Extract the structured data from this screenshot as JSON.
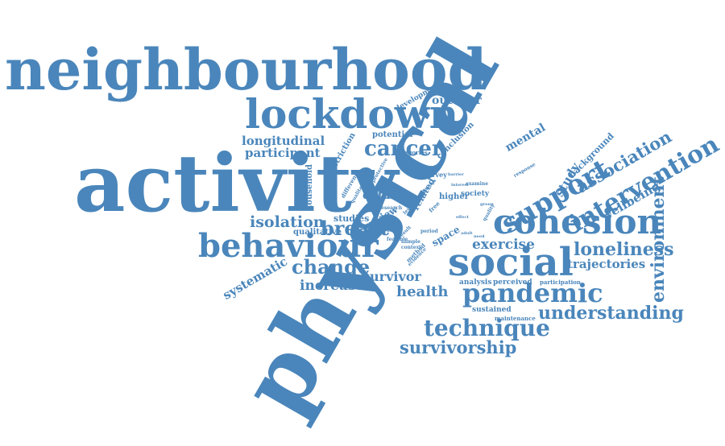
{
  "word_cloud": {
    "color": "#4a86bb",
    "words": {
      "physical": "physical",
      "activity": "activity",
      "neighbourhood": "neighbourhood",
      "lockdown": "lockdown",
      "social": "social",
      "cohesion": "cohesion",
      "behaviour": "behaviour",
      "pandemic": "pandemic",
      "support": "support",
      "intervention": "intervention",
      "environment": "environment",
      "association": "association",
      "loneliness": "loneliness",
      "technique": "technique",
      "understanding": "understanding",
      "survivorship": "survivorship",
      "change": "change",
      "cancer": "cancer",
      "breast": "breast",
      "isolation": "isolation",
      "health": "health",
      "increase": "increase",
      "survivor": "survivor",
      "systematic": "systematic",
      "exercise": "exercise",
      "trajectories": "trajectories",
      "wellbeing": "wellbeing",
      "study": "study",
      "background": "background",
      "mental": "mental",
      "outdoor": "outdoor",
      "development": "development",
      "longitudinal": "longitudinal",
      "participant": "participant",
      "potential": "potential",
      "conclusion": "conclusion",
      "restriction": "restriction",
      "household": "household",
      "data": "data",
      "review": "review",
      "studies": "studies",
      "qualitative": "qualitative",
      "space": "space",
      "analysis": "analysis",
      "perceived": "perceived",
      "participation": "participation",
      "sustained": "sustained",
      "maintenance": "maintenance",
      "higher": "higher",
      "society": "society",
      "survey": "survey",
      "related": "related",
      "categories": "categories",
      "difference": "difference",
      "qualitatively": "qualitatively",
      "protective": "protective",
      "research": "research",
      "level": "level",
      "result": "result",
      "method": "method",
      "sample": "sample",
      "context": "context",
      "feasible": "feasible",
      "free": "free",
      "period": "period",
      "evidence": "evidence",
      "examine": "examine",
      "quality": "quality",
      "response": "response",
      "barrier": "barrier",
      "interest": "interest",
      "design": "design",
      "person": "person",
      "adult": "adult",
      "home": "home",
      "group": "group",
      "effect": "effect",
      "need": "need"
    }
  }
}
